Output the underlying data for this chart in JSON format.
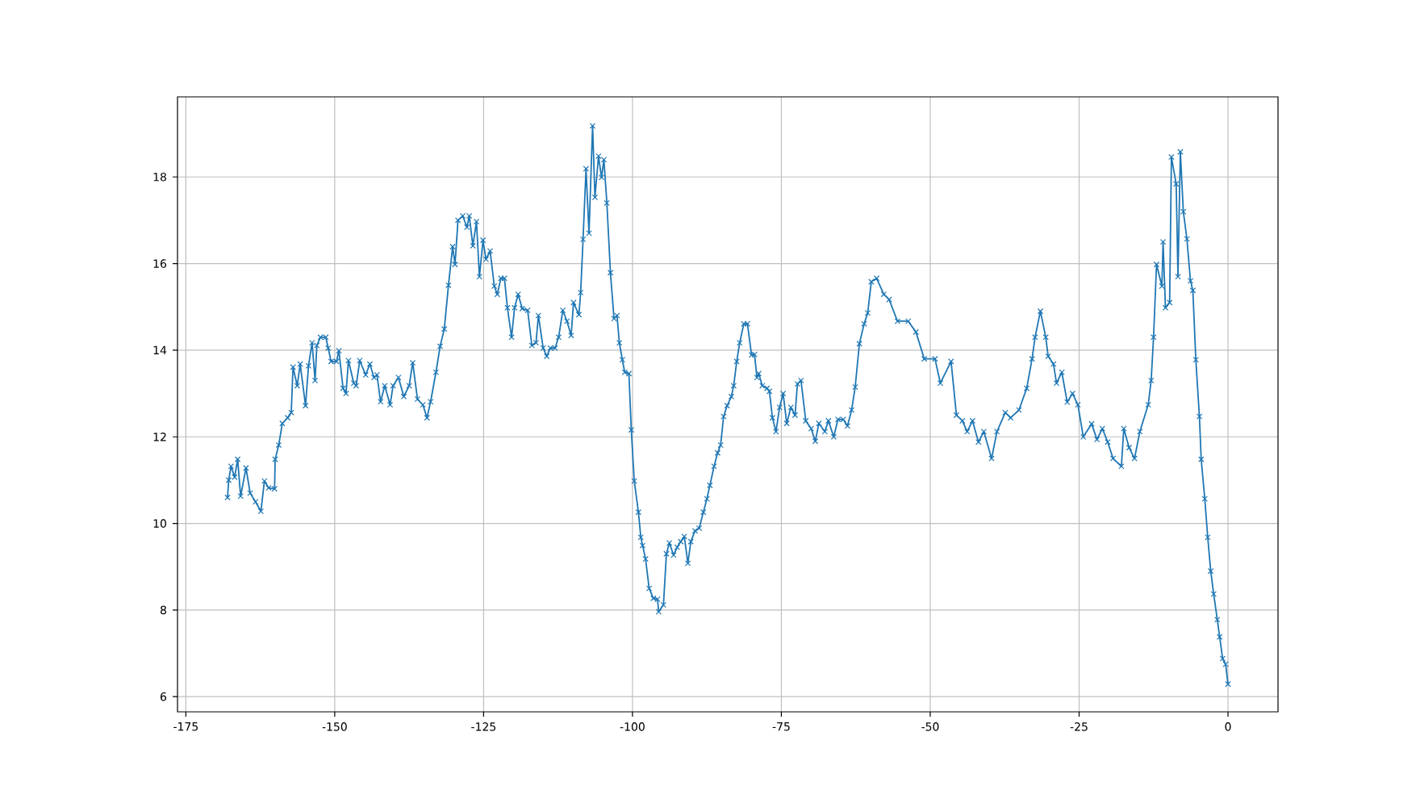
{
  "chart_data": {
    "type": "line",
    "color": "#1f77b4",
    "marker": "cross",
    "line_style": "solid",
    "grid": true,
    "xlim": [
      -176.4,
      8.4
    ],
    "ylim": [
      5.65,
      19.85
    ],
    "xticks": [
      -175,
      -150,
      -125,
      -100,
      -75,
      -50,
      -25,
      0
    ],
    "yticks": [
      6,
      8,
      10,
      12,
      14,
      16,
      18
    ],
    "x": [
      -168.0,
      -167.8,
      -167.4,
      -166.8,
      -166.3,
      -165.8,
      -164.9,
      -164.2,
      -163.3,
      -162.4,
      -161.8,
      -161.1,
      -160.1,
      -160.0,
      -159.4,
      -158.8,
      -157.9,
      -157.3,
      -157.0,
      -156.3,
      -155.8,
      -154.9,
      -154.4,
      -153.8,
      -153.3,
      -153.0,
      -152.4,
      -151.5,
      -151.1,
      -150.6,
      -149.7,
      -149.3,
      -148.6,
      -148.1,
      -147.7,
      -146.8,
      -146.4,
      -145.8,
      -144.8,
      -144.1,
      -143.4,
      -142.9,
      -142.3,
      -141.6,
      -140.7,
      -140.2,
      -139.3,
      -138.4,
      -137.5,
      -136.9,
      -136.1,
      -135.2,
      -134.5,
      -133.9,
      -133.0,
      -132.3,
      -131.6,
      -130.9,
      -130.2,
      -129.8,
      -129.3,
      -128.5,
      -127.8,
      -127.4,
      -126.8,
      -126.2,
      -125.7,
      -125.1,
      -124.6,
      -123.9,
      -123.2,
      -122.7,
      -122.1,
      -121.5,
      -121.0,
      -120.3,
      -119.8,
      -119.2,
      -118.5,
      -117.6,
      -116.9,
      -116.2,
      -115.8,
      -115.0,
      -114.4,
      -113.8,
      -113.0,
      -112.4,
      -111.7,
      -111.0,
      -110.3,
      -109.9,
      -109.0,
      -108.7,
      -108.3,
      -107.8,
      -107.3,
      -106.7,
      -106.3,
      -105.7,
      -105.2,
      -104.8,
      -104.3,
      -103.7,
      -103.1,
      -102.6,
      -102.2,
      -101.7,
      -101.3,
      -100.6,
      -100.2,
      -99.7,
      -99.0,
      -98.6,
      -98.3,
      -97.8,
      -97.2,
      -96.5,
      -95.8,
      -95.6,
      -94.8,
      -94.3,
      -93.8,
      -93.1,
      -92.5,
      -91.9,
      -91.3,
      -90.7,
      -90.2,
      -89.5,
      -88.8,
      -88.1,
      -87.5,
      -87.0,
      -86.3,
      -85.7,
      -85.2,
      -84.7,
      -84.1,
      -83.4,
      -83.0,
      -82.5,
      -82.0,
      -81.3,
      -80.7,
      -80.0,
      -79.5,
      -79.1,
      -78.8,
      -78.2,
      -77.4,
      -77.0,
      -76.5,
      -75.9,
      -75.3,
      -74.7,
      -74.1,
      -73.4,
      -72.7,
      -72.3,
      -71.7,
      -70.9,
      -70.0,
      -69.3,
      -68.7,
      -67.7,
      -67.1,
      -66.2,
      -65.5,
      -64.6,
      -63.9,
      -63.2,
      -62.6,
      -61.9,
      -61.1,
      -60.5,
      -59.9,
      -59.0,
      -57.8,
      -56.9,
      -55.5,
      -53.7,
      -52.4,
      -51.0,
      -49.2,
      -48.3,
      -46.5,
      -45.6,
      -44.6,
      -43.8,
      -42.9,
      -41.9,
      -41.0,
      -39.7,
      -38.8,
      -37.4,
      -36.5,
      -35.1,
      -33.8,
      -32.9,
      -32.4,
      -31.5,
      -30.6,
      -30.2,
      -29.3,
      -28.8,
      -27.9,
      -27.0,
      -26.1,
      -25.2,
      -24.3,
      -22.9,
      -22.0,
      -21.1,
      -20.2,
      -19.3,
      -17.9,
      -17.5,
      -16.6,
      -15.7,
      -14.8,
      -13.4,
      -12.9,
      -12.5,
      -12.0,
      -11.1,
      -10.9,
      -10.5,
      -9.8,
      -9.5,
      -8.7,
      -8.4,
      -8.0,
      -7.5,
      -6.9,
      -6.3,
      -5.9,
      -5.4,
      -4.8,
      -4.5,
      -3.9,
      -3.4,
      -2.9,
      -2.4,
      -1.8,
      -1.4,
      -0.9,
      -0.4,
      0.0
    ],
    "values": [
      10.6,
      11.0,
      11.32,
      11.07,
      11.48,
      10.63,
      11.28,
      10.7,
      10.5,
      10.28,
      10.98,
      10.82,
      10.8,
      11.48,
      11.81,
      12.31,
      12.44,
      12.56,
      13.61,
      13.18,
      13.68,
      12.72,
      13.64,
      14.17,
      13.3,
      14.11,
      14.3,
      14.3,
      14.05,
      13.74,
      13.74,
      13.99,
      13.12,
      13.0,
      13.76,
      13.24,
      13.18,
      13.76,
      13.43,
      13.68,
      13.37,
      13.43,
      12.81,
      13.18,
      12.74,
      13.18,
      13.37,
      12.93,
      13.18,
      13.71,
      12.87,
      12.74,
      12.44,
      12.81,
      13.49,
      14.09,
      14.49,
      15.5,
      16.39,
      15.98,
      17.0,
      17.1,
      16.84,
      17.1,
      16.41,
      16.97,
      15.7,
      16.54,
      16.1,
      16.29,
      15.48,
      15.29,
      15.66,
      15.66,
      14.98,
      14.3,
      14.98,
      15.29,
      14.96,
      14.92,
      14.11,
      14.17,
      14.8,
      14.05,
      13.86,
      14.05,
      14.05,
      14.3,
      14.92,
      14.67,
      14.34,
      15.1,
      14.82,
      15.33,
      16.56,
      18.19,
      16.7,
      19.18,
      17.53,
      18.48,
      17.99,
      18.4,
      17.4,
      15.79,
      14.73,
      14.8,
      14.17,
      13.78,
      13.49,
      13.46,
      12.16,
      10.98,
      10.26,
      9.68,
      9.49,
      9.18,
      8.5,
      8.27,
      8.25,
      7.96,
      8.12,
      9.3,
      9.55,
      9.27,
      9.45,
      9.58,
      9.7,
      9.08,
      9.58,
      9.83,
      9.89,
      10.26,
      10.57,
      10.88,
      11.32,
      11.63,
      11.81,
      12.47,
      12.72,
      12.93,
      13.18,
      13.74,
      14.17,
      14.61,
      14.61,
      13.89,
      13.9,
      13.37,
      13.46,
      13.18,
      13.12,
      13.05,
      12.44,
      12.12,
      12.68,
      13.0,
      12.31,
      12.68,
      12.5,
      13.22,
      13.3,
      12.37,
      12.19,
      11.9,
      12.31,
      12.12,
      12.37,
      12.0,
      12.4,
      12.4,
      12.25,
      12.62,
      13.15,
      14.15,
      14.61,
      14.86,
      15.58,
      15.66,
      15.29,
      15.17,
      14.67,
      14.67,
      14.42,
      13.8,
      13.8,
      13.24,
      13.74,
      12.5,
      12.37,
      12.12,
      12.37,
      11.88,
      12.12,
      11.5,
      12.12,
      12.56,
      12.44,
      12.62,
      13.12,
      13.8,
      14.3,
      14.9,
      14.3,
      13.86,
      13.68,
      13.24,
      13.49,
      12.8,
      13.0,
      12.74,
      12.0,
      12.3,
      11.94,
      12.19,
      11.88,
      11.5,
      11.32,
      12.19,
      11.75,
      11.5,
      12.12,
      12.74,
      13.3,
      14.3,
      15.98,
      15.48,
      16.5,
      14.98,
      15.1,
      18.46,
      17.84,
      15.7,
      18.58,
      17.2,
      16.57,
      15.6,
      15.38,
      13.78,
      12.47,
      11.48,
      10.57,
      9.68,
      8.9,
      8.37,
      7.78,
      7.38,
      6.88,
      6.75,
      6.29
    ]
  }
}
